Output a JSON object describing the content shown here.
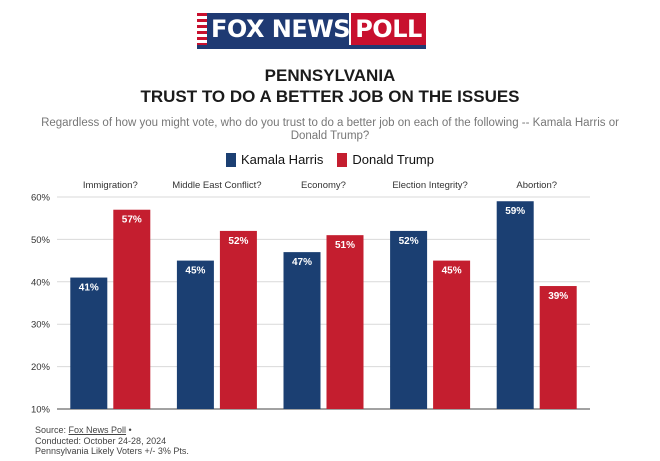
{
  "logo": {
    "fox": "FOX NEWS",
    "poll": "POLL"
  },
  "header": {
    "title_line1": "PENNSYLVANIA",
    "title_line2": "TRUST TO DO A BETTER JOB ON THE ISSUES",
    "subtitle": "Regardless of how you might vote, who do you trust to do a better job on each of the following -- Kamala Harris or Donald Trump?"
  },
  "legend": [
    {
      "name": "Kamala Harris",
      "color": "#1b3f72"
    },
    {
      "name": "Donald Trump",
      "color": "#c41e2f"
    }
  ],
  "source": {
    "prefix": "Source: ",
    "link": "Fox News Poll",
    "suffix": " •",
    "conducted": "Conducted: October 24-28, 2024",
    "sample": "Pennsylvania Likely Voters +/- 3% Pts."
  },
  "chart_data": {
    "type": "bar",
    "categories": [
      "Immigration?",
      "Middle East Conflict?",
      "Economy?",
      "Election Integrity?",
      "Abortion?"
    ],
    "series": [
      {
        "name": "Kamala Harris",
        "color": "#1b3f72",
        "values": [
          41,
          45,
          47,
          52,
          59
        ]
      },
      {
        "name": "Donald Trump",
        "color": "#c41e2f",
        "values": [
          57,
          52,
          51,
          45,
          39
        ]
      }
    ],
    "ylim": [
      10,
      60
    ],
    "yticks": [
      10,
      20,
      30,
      40,
      50,
      60
    ],
    "tick_suffix": "%",
    "data_label_suffix": "%",
    "grid": true,
    "legend_position": "top-center",
    "category_label_position": "top"
  }
}
